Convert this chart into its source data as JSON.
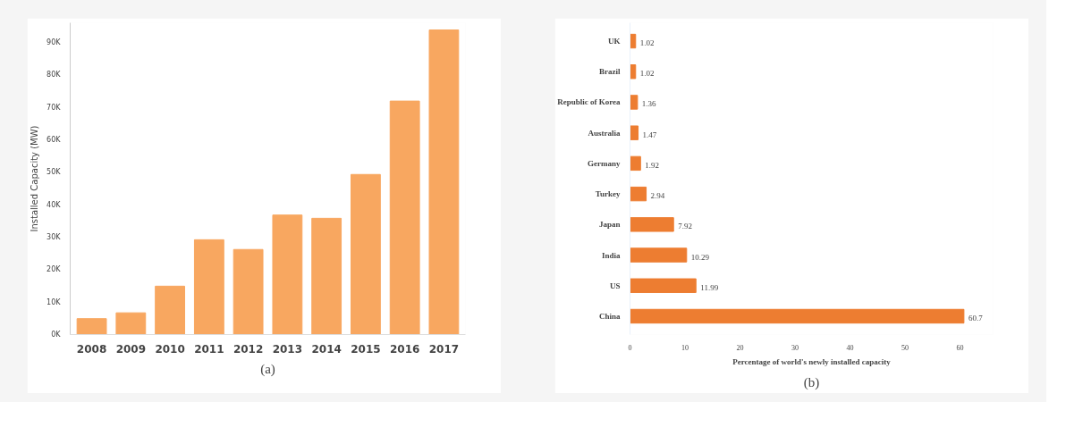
{
  "chart_data": [
    {
      "type": "bar",
      "categories": [
        "2008",
        "2009",
        "2010",
        "2011",
        "2012",
        "2013",
        "2014",
        "2015",
        "2016",
        "2017"
      ],
      "values": [
        4900,
        6700,
        14900,
        29200,
        26200,
        36800,
        35800,
        49300,
        71900,
        93800
      ],
      "color": "#f8a760",
      "ylabel": "Installed Capacity (MW)",
      "ylim": [
        0,
        96000
      ],
      "yticks": [
        {
          "value": 0,
          "label": "0K"
        },
        {
          "value": 10000,
          "label": "10K"
        },
        {
          "value": 20000,
          "label": "20K"
        },
        {
          "value": 30000,
          "label": "30K"
        },
        {
          "value": 40000,
          "label": "40K"
        },
        {
          "value": 50000,
          "label": "50K"
        },
        {
          "value": 60000,
          "label": "60K"
        },
        {
          "value": 70000,
          "label": "70K"
        },
        {
          "value": 80000,
          "label": "80K"
        },
        {
          "value": 90000,
          "label": "90K"
        }
      ],
      "grid": false,
      "annotations": [
        "(a)"
      ]
    },
    {
      "type": "bar",
      "orientation": "horizontal",
      "categories": [
        "UK",
        "Brazil",
        "Republic of Korea",
        "Australia",
        "Germany",
        "Turkey",
        "Japan",
        "India",
        "US",
        "China"
      ],
      "values": [
        1.02,
        1.02,
        1.36,
        1.47,
        1.92,
        2.94,
        7.92,
        10.29,
        11.99,
        60.7
      ],
      "color": "#ed7d31",
      "xlabel": "Percentage of world's newly installed capacity",
      "xlim": [
        0,
        66
      ],
      "xticks": [
        0,
        10,
        20,
        30,
        40,
        50,
        60
      ],
      "data_labels": true,
      "grid": false,
      "annotations": [
        "(b)"
      ]
    }
  ]
}
